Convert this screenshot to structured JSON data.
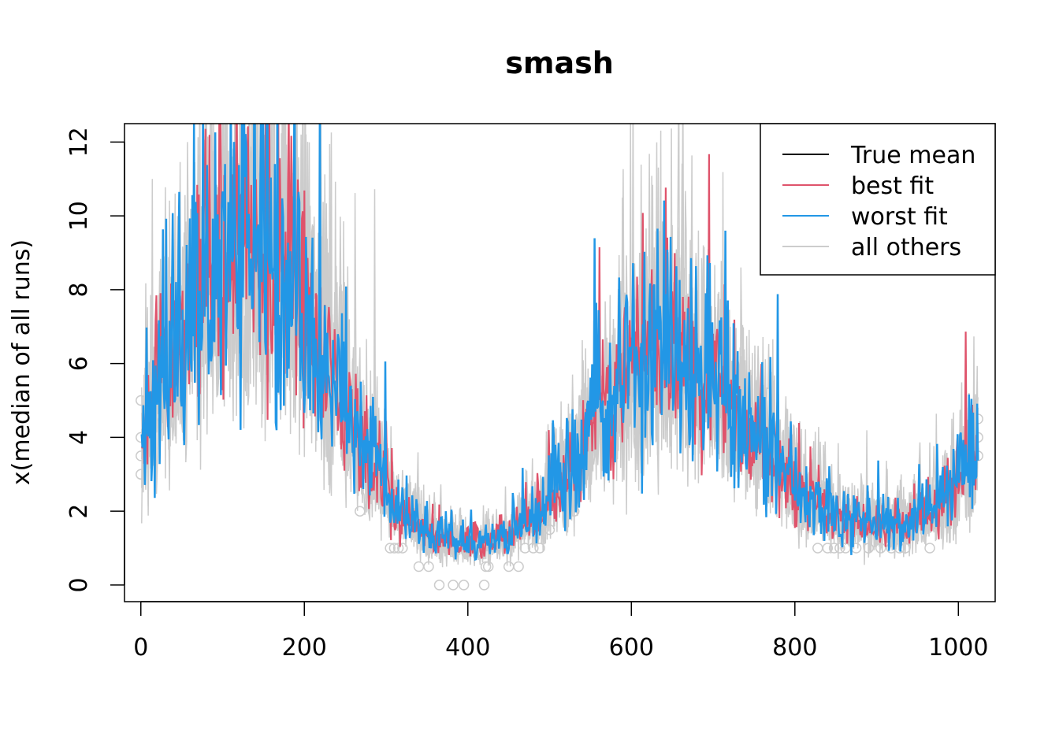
{
  "chart_data": {
    "type": "line",
    "title": "smash",
    "xlabel": "",
    "ylabel": "x(median of all runs)",
    "xlim": [
      -20,
      1045
    ],
    "ylim": [
      -0.45,
      12.5
    ],
    "x_ticks": [
      0,
      200,
      400,
      600,
      800,
      1000
    ],
    "y_ticks": [
      0,
      2,
      4,
      6,
      8,
      10,
      12
    ],
    "x_tick_labels": [
      "0",
      "200",
      "400",
      "600",
      "800",
      "1000"
    ],
    "y_tick_labels": [
      "0",
      "2",
      "4",
      "6",
      "8",
      "10",
      "12"
    ],
    "n_points": 1024,
    "true_mean_anchors": {
      "x": [
        0,
        30,
        80,
        130,
        180,
        230,
        280,
        320,
        360,
        400,
        440,
        480,
        520,
        560,
        600,
        630,
        660,
        700,
        740,
        780,
        820,
        860,
        900,
        940,
        980,
        1024
      ],
      "y": [
        4.0,
        6.0,
        8.5,
        9.5,
        8.5,
        6.0,
        3.5,
        2.0,
        1.3,
        1.1,
        1.3,
        1.9,
        3.0,
        4.5,
        6.0,
        6.6,
        6.5,
        5.8,
        4.6,
        3.4,
        2.4,
        1.8,
        1.6,
        1.7,
        2.3,
        3.5
      ]
    },
    "series": [
      {
        "name": "True mean",
        "color": "#000000"
      },
      {
        "name": "best fit",
        "color": "#DF536B"
      },
      {
        "name": "worst fit",
        "color": "#2297E6"
      },
      {
        "name": "all others",
        "color": "#CCCCCC"
      }
    ],
    "legend": {
      "position": "top-right"
    }
  }
}
